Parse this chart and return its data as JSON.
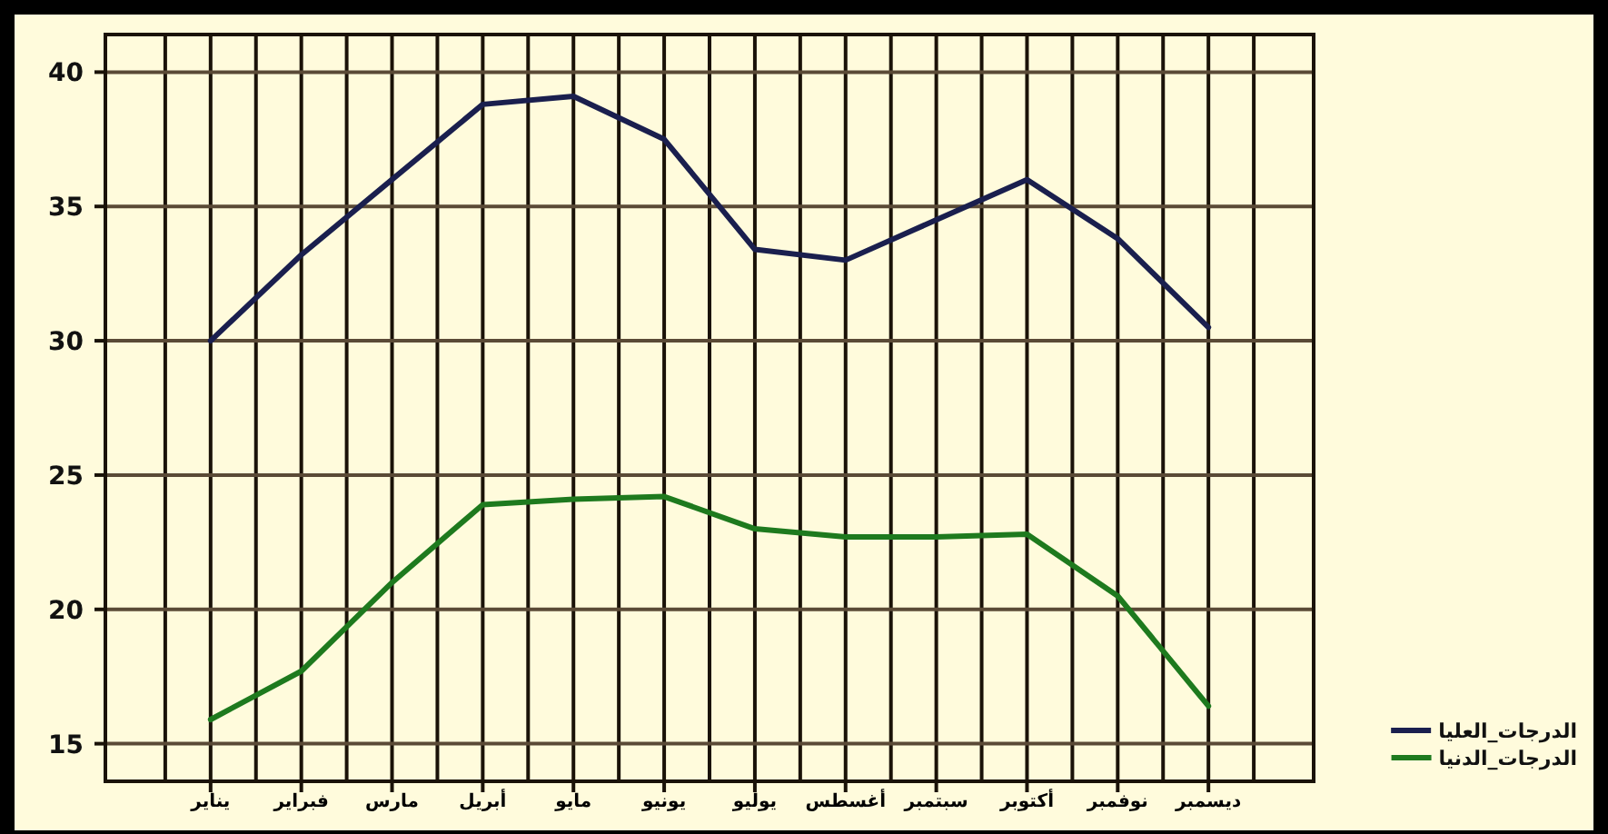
{
  "chart_data": {
    "type": "line",
    "categories": [
      "يناير",
      "فبراير",
      "مارس",
      "أبريل",
      "مايو",
      "يونيو",
      "يوليو",
      "أغسطس",
      "سبتمبر",
      "أكتوبر",
      "نوفمبر",
      "ديسمبر"
    ],
    "series": [
      {
        "name": "الدرجات_العليا",
        "color": "#1a1f4e",
        "values": [
          30.0,
          33.2,
          36.0,
          38.8,
          39.1,
          37.5,
          33.4,
          33.0,
          34.5,
          36.0,
          33.8,
          30.5
        ]
      },
      {
        "name": "الدرجات_الدنيا",
        "color": "#1e7a1e",
        "values": [
          15.9,
          17.7,
          21.0,
          23.9,
          24.1,
          24.2,
          23.0,
          22.7,
          22.7,
          22.8,
          20.5,
          16.4
        ]
      }
    ],
    "ylim": [
      13.6,
      41.4
    ],
    "yticks": [
      15,
      20,
      25,
      30,
      35,
      40
    ],
    "grid": true,
    "legend": "bottom right",
    "marker": "none",
    "line_style": "solid"
  }
}
